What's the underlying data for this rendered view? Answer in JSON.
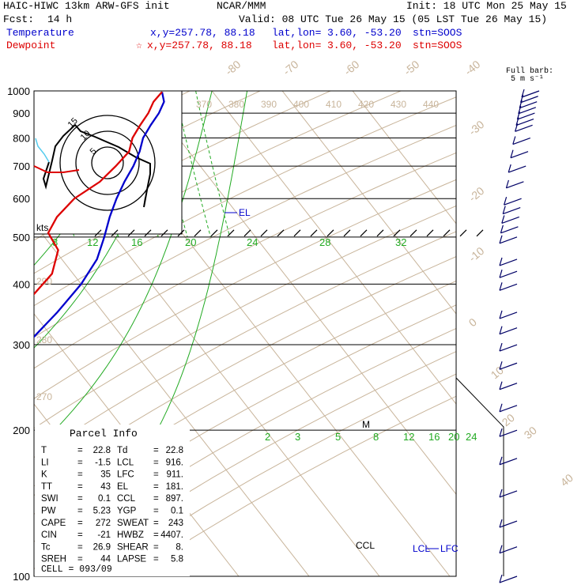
{
  "header": {
    "model": "HAIC-HIWC 13km ARW-GFS init",
    "org": "NCAR/MMM",
    "init": "Init: 18 UTC Mon 25 May 15",
    "fcst_label": "Fcst:",
    "fcst": "14 h",
    "valid": "Valid: 08 UTC Tue 26 May 15 (05 LST Tue 26 May 15)"
  },
  "legend": {
    "temperature": {
      "label": "Temperature",
      "xy": "x,y=257.78, 88.18",
      "latlon_label": "lat,lon=",
      "latlon": "3.60, -53.20",
      "stn": "stn=SOOS",
      "color": "#0000cc"
    },
    "dewpoint": {
      "label": "Dewpoint",
      "marker": "☆",
      "xy": "x,y=257.78, 88.18",
      "latlon_label": "lat,lon=",
      "latlon": "3.60, -53.20",
      "stn": "stn=SOOS",
      "color": "#dd0000"
    }
  },
  "barb_legend": {
    "title": "Full barb:",
    "value": "5 m s⁻¹"
  },
  "parcel_info": {
    "title": "Parcel Info",
    "rows": [
      [
        "T",
        "=",
        "22.8",
        "Td",
        "=",
        "22.8"
      ],
      [
        "LI",
        "=",
        "-1.5",
        "LCL",
        "=",
        "916."
      ],
      [
        "K",
        "=",
        "35",
        "LFC",
        "=",
        "911."
      ],
      [
        "TT",
        "=",
        "43",
        "EL",
        "=",
        "181."
      ],
      [
        "SWI",
        "=",
        "0.1",
        "CCL",
        "=",
        "897."
      ],
      [
        "PW",
        "=",
        "5.23",
        "YGP",
        "=",
        "0.1"
      ],
      [
        "CAPE",
        "=",
        "272",
        "SWEAT",
        "=",
        "243"
      ],
      [
        "CIN",
        "=",
        "-21",
        "HWBZ",
        "=",
        "4407."
      ],
      [
        "Tc",
        "=",
        "26.9",
        "SHEAR",
        "=",
        "8."
      ],
      [
        "SREH",
        "=",
        "44",
        "LAPSE",
        "=",
        "5.8"
      ]
    ],
    "cell": "CELL = 093/09"
  },
  "hodograph": {
    "axis_label": "kts",
    "rings": [
      "5",
      "10",
      "15"
    ]
  },
  "chart_data": {
    "type": "line",
    "title": "",
    "y_axis": "pressure (hPa), log scale",
    "pressure_range": [
      1000,
      100
    ],
    "pressure_ticks": [
      "100",
      "200",
      "300",
      "400",
      "500",
      "600",
      "700",
      "800",
      "900",
      "1000"
    ],
    "isotherm_labels": [
      "-80",
      "-70",
      "-60",
      "-50",
      "-40",
      "-30",
      "-20",
      "-10",
      "0",
      "10",
      "20",
      "30",
      "40"
    ],
    "mixing_ratio_labels_upper": [
      "8",
      "12",
      "16",
      "20",
      "24",
      "28",
      "32"
    ],
    "mixing_ratio_labels_lower": [
      "2",
      "3",
      "5",
      "8",
      "12",
      "16",
      "20",
      "24"
    ],
    "theta_e_labels": [
      "370",
      "380",
      "390",
      "400",
      "410",
      "420",
      "430",
      "440"
    ],
    "theta_labels": [
      "290",
      "280",
      "270"
    ],
    "annotations": [
      "EL",
      "LCL",
      "LFC",
      "CCL",
      "M"
    ],
    "series": [
      {
        "name": "Temperature",
        "color": "#0000cc",
        "points": [
          [
            995,
            22.8
          ],
          [
            950,
            22.0
          ],
          [
            900,
            20.0
          ],
          [
            850,
            17.5
          ],
          [
            800,
            15.0
          ],
          [
            750,
            13.0
          ],
          [
            700,
            10.5
          ],
          [
            650,
            7.5
          ],
          [
            600,
            4.5
          ],
          [
            550,
            1.5
          ],
          [
            500,
            -1.5
          ],
          [
            450,
            -5.0
          ],
          [
            400,
            -10.0
          ],
          [
            350,
            -16.5
          ],
          [
            300,
            -24.5
          ],
          [
            250,
            -33.5
          ],
          [
            200,
            -45.0
          ],
          [
            180,
            -49.5
          ],
          [
            150,
            -59.0
          ],
          [
            125,
            -70.0
          ],
          [
            110,
            -79.0
          ],
          [
            100,
            -83.0
          ]
        ]
      },
      {
        "name": "Dewpoint",
        "color": "#dd0000",
        "points": [
          [
            995,
            22.8
          ],
          [
            950,
            20.5
          ],
          [
            900,
            18.5
          ],
          [
            850,
            16.0
          ],
          [
            800,
            13.5
          ],
          [
            750,
            11.5
          ],
          [
            700,
            8.0
          ],
          [
            650,
            4.0
          ],
          [
            600,
            -1.5
          ],
          [
            550,
            -6.0
          ],
          [
            510,
            -9.0
          ],
          [
            470,
            -9.5
          ],
          [
            420,
            -13.0
          ],
          [
            380,
            -18.0
          ],
          [
            330,
            -25.0
          ],
          [
            300,
            -29.0
          ],
          [
            250,
            -42.0
          ],
          [
            220,
            -48.0
          ],
          [
            200,
            -54.0
          ],
          [
            180,
            -66.0
          ],
          [
            165,
            -74.0
          ],
          [
            150,
            -80.0
          ],
          [
            130,
            -90.0
          ],
          [
            115,
            -92.0
          ],
          [
            100,
            -90.0
          ]
        ]
      }
    ],
    "wind_barbs_hPa": [
      100,
      115,
      130,
      150,
      175,
      200,
      225,
      250,
      275,
      300,
      325,
      350,
      400,
      425,
      450,
      500,
      525,
      550,
      575,
      600,
      650,
      700,
      750,
      800,
      850,
      875,
      900,
      925,
      950,
      975,
      1000
    ]
  }
}
